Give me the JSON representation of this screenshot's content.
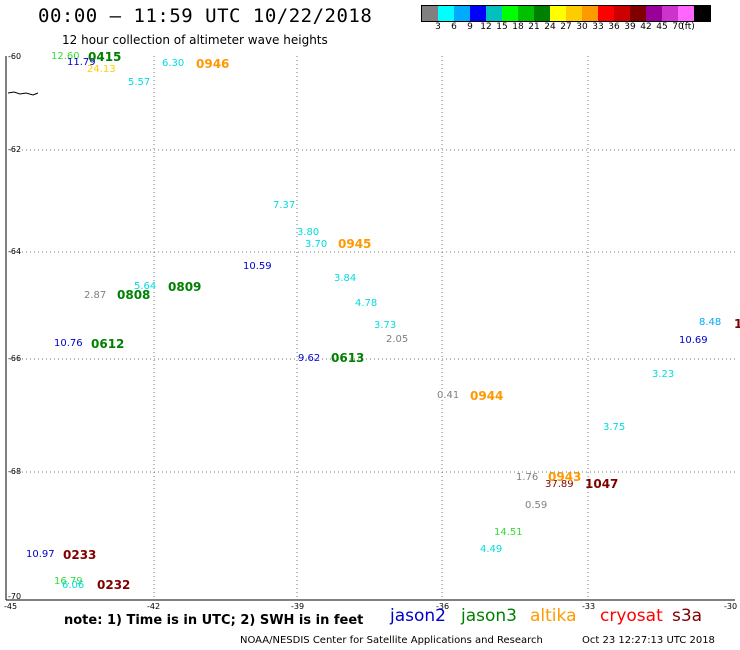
{
  "header": {
    "title": "00:00 – 11:59 UTC 10/22/2018",
    "subtitle": "12 hour collection of altimeter wave heights"
  },
  "legend": {
    "colors": [
      "#808080",
      "#00ffff",
      "#00aaff",
      "#0000ff",
      "#00c0c0",
      "#00ff00",
      "#00c000",
      "#008000",
      "#ffff00",
      "#ffcc00",
      "#ff9900",
      "#ff0000",
      "#cc0000",
      "#800000",
      "#990099",
      "#cc33cc",
      "#ff66ff",
      "#000000"
    ],
    "ticks": [
      "3",
      "6",
      "9",
      "12",
      "15",
      "18",
      "21",
      "24",
      "27",
      "30",
      "33",
      "36",
      "39",
      "42",
      "45",
      "70",
      "(ft)"
    ]
  },
  "map": {
    "lat_labels": [
      "-60",
      "-62",
      "-64",
      "-66",
      "-68",
      "-70"
    ],
    "lon_labels": [
      "-45",
      "-42",
      "-39",
      "-36",
      "-33",
      "-30"
    ]
  },
  "observations": [
    {
      "text": "12.60",
      "color": "#33dd33"
    },
    {
      "text": "11.79",
      "color": "#0000cc"
    },
    {
      "text": "24.13",
      "color": "#ffcc00"
    },
    {
      "text": "5.57",
      "color": "#00dddd"
    },
    {
      "text": "6.30",
      "color": "#00dddd"
    },
    {
      "text": "7.37",
      "color": "#00dddd"
    },
    {
      "text": "3.80",
      "color": "#00dddd"
    },
    {
      "text": "3.70",
      "color": "#00dddd"
    },
    {
      "text": "10.59",
      "color": "#0000cc"
    },
    {
      "text": "3.84",
      "color": "#00dddd"
    },
    {
      "text": "4.78",
      "color": "#00dddd"
    },
    {
      "text": "3.73",
      "color": "#00dddd"
    },
    {
      "text": "2.05",
      "color": "#808080"
    },
    {
      "text": "2.87",
      "color": "#808080"
    },
    {
      "text": "5.64",
      "color": "#00dddd"
    },
    {
      "text": "10.76",
      "color": "#0000cc"
    },
    {
      "text": "9.62",
      "color": "#0000cc"
    },
    {
      "text": "0.41",
      "color": "#808080"
    },
    {
      "text": "8.48",
      "color": "#00aaff"
    },
    {
      "text": "10.69",
      "color": "#0000cc"
    },
    {
      "text": "3.23",
      "color": "#00dddd"
    },
    {
      "text": "3.75",
      "color": "#00dddd"
    },
    {
      "text": "1.76",
      "color": "#808080"
    },
    {
      "text": "37.89",
      "color": "#800000"
    },
    {
      "text": "0.59",
      "color": "#808080"
    },
    {
      "text": "14.51",
      "color": "#33dd33"
    },
    {
      "text": "4.49",
      "color": "#00dddd"
    },
    {
      "text": "10.97",
      "color": "#0000cc"
    },
    {
      "text": "16.79",
      "color": "#33dd33"
    },
    {
      "text": "6.06",
      "color": "#00dddd"
    }
  ],
  "times": [
    {
      "text": "0415",
      "color": "#008000"
    },
    {
      "text": "0946",
      "color": "#ff9900"
    },
    {
      "text": "0945",
      "color": "#ff9900"
    },
    {
      "text": "0808",
      "color": "#008000"
    },
    {
      "text": "0809",
      "color": "#008000"
    },
    {
      "text": "0612",
      "color": "#008000"
    },
    {
      "text": "0613",
      "color": "#008000"
    },
    {
      "text": "0944",
      "color": "#ff9900"
    },
    {
      "text": "0943",
      "color": "#ff9900"
    },
    {
      "text": "1047",
      "color": "#800000"
    },
    {
      "text": "0233",
      "color": "#800000"
    },
    {
      "text": "0232",
      "color": "#800000"
    },
    {
      "text": "1",
      "color": "#800000"
    }
  ],
  "footer": {
    "note": "note:  1) Time is in UTC;  2) SWH is in feet",
    "satellites": [
      {
        "name": "jason2",
        "color": "#0000cc"
      },
      {
        "name": "jason3",
        "color": "#008000"
      },
      {
        "name": "altika",
        "color": "#ff9900"
      },
      {
        "name": "cryosat",
        "color": "#ff0000"
      },
      {
        "name": "s3a",
        "color": "#800000"
      }
    ],
    "credit": "NOAA/NESDIS Center for Satellite Applications and Research",
    "timestamp": "Oct 23 12:27:13 UTC 2018"
  }
}
